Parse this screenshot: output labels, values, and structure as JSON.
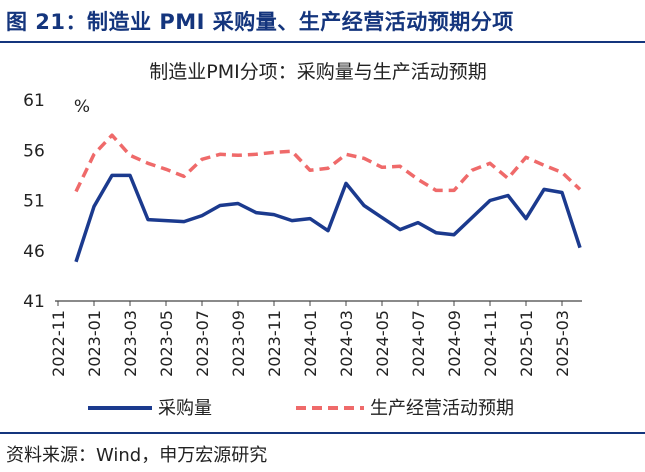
{
  "figure": {
    "title": "图 21：制造业 PMI 采购量、生产经营活动预期分项",
    "source": "资料来源：Wind，申万宏源研究"
  },
  "colors": {
    "brand": "#14357d",
    "series_purchase": "#1b3a8e",
    "series_expect": "#ef6a6a"
  },
  "chart_data": {
    "type": "line",
    "title": "制造业PMI分项：采购量与生产活动预期",
    "ylabel": "%",
    "xlabel": "",
    "ylim": [
      41,
      61
    ],
    "yticks": [
      41,
      46,
      51,
      56,
      61
    ],
    "grid": false,
    "legend": "bottom",
    "x": [
      "2022-12",
      "2023-01",
      "2023-02",
      "2023-03",
      "2023-04",
      "2023-05",
      "2023-06",
      "2023-07",
      "2023-08",
      "2023-09",
      "2023-10",
      "2023-11",
      "2023-12",
      "2024-01",
      "2024-02",
      "2024-03",
      "2024-04",
      "2024-05",
      "2024-06",
      "2024-07",
      "2024-08",
      "2024-09",
      "2024-10",
      "2024-11",
      "2024-12",
      "2025-01",
      "2025-02",
      "2025-03",
      "2025-04"
    ],
    "xtick_labels": [
      "2022-11",
      "2023-01",
      "2023-03",
      "2023-05",
      "2023-07",
      "2023-09",
      "2023-11",
      "2024-01",
      "2024-03",
      "2024-05",
      "2024-07",
      "2024-09",
      "2024-11",
      "2025-01",
      "2025-03"
    ],
    "series": [
      {
        "name": "采购量",
        "style": "solid",
        "values": [
          44.9,
          50.4,
          53.5,
          53.5,
          49.1,
          49.0,
          48.9,
          49.5,
          50.5,
          50.7,
          49.8,
          49.6,
          49.0,
          49.2,
          48.0,
          52.7,
          50.5,
          49.3,
          48.1,
          48.8,
          47.8,
          47.6,
          49.3,
          51.0,
          51.5,
          49.2,
          52.1,
          51.8,
          46.3
        ]
      },
      {
        "name": "生产经营活动预期",
        "style": "dashed",
        "values": [
          51.9,
          55.6,
          57.5,
          55.5,
          54.7,
          54.1,
          53.4,
          55.1,
          55.6,
          55.5,
          55.6,
          55.8,
          55.9,
          54.0,
          54.2,
          55.6,
          55.2,
          54.3,
          54.4,
          53.1,
          52.0,
          52.0,
          54.0,
          54.7,
          53.2,
          55.3,
          54.5,
          53.8,
          52.1
        ]
      }
    ]
  }
}
